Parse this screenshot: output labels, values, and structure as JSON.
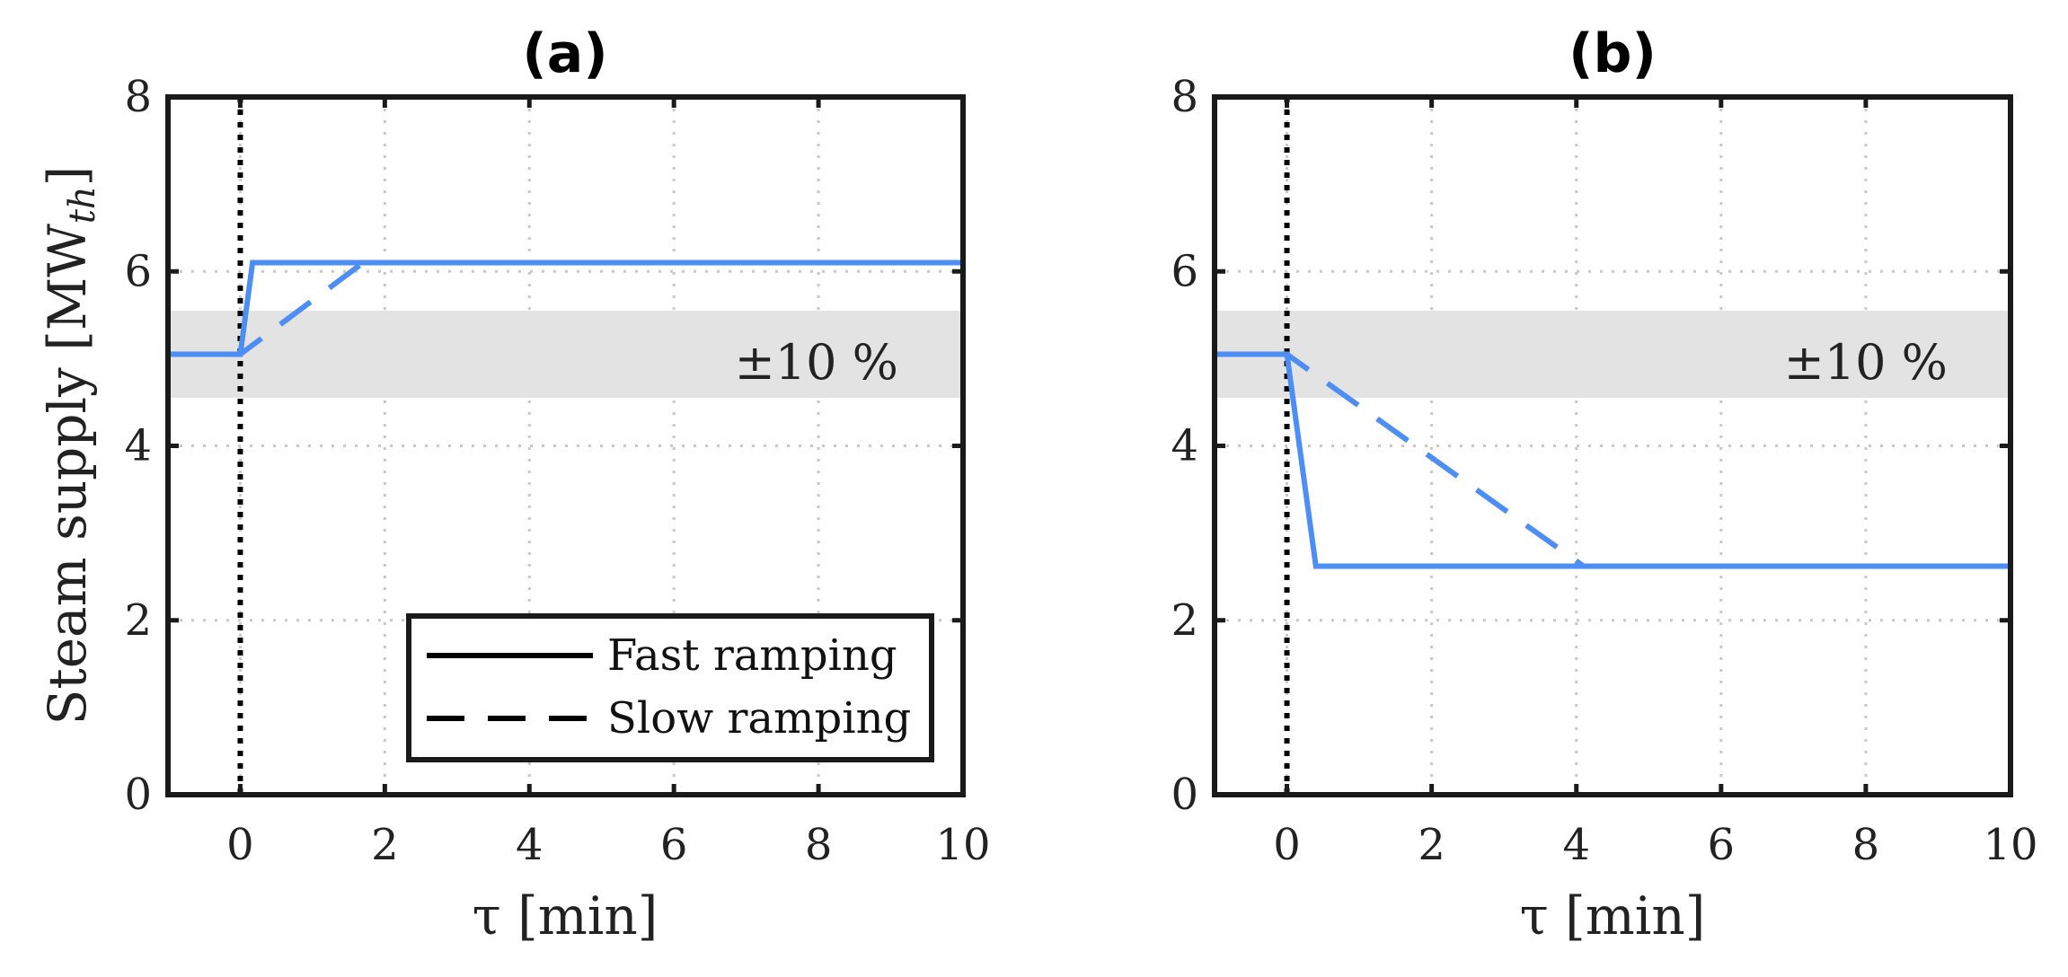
{
  "chart_data": [
    {
      "panel": "a",
      "type": "line",
      "title": "(a)",
      "xlabel": "τ [min]",
      "ylabel": "Steam supply [MW",
      "ylabel_sub": "th",
      "ylabel_close": "]",
      "xlim": [
        -1,
        10
      ],
      "ylim": [
        0,
        8
      ],
      "xticks": [
        0,
        2,
        4,
        6,
        8,
        10
      ],
      "xtick_labels": [
        "0",
        "2",
        "4",
        "6",
        "8",
        "10"
      ],
      "yticks": [
        0,
        2,
        4,
        6,
        8
      ],
      "ytick_labels": [
        "0",
        "2",
        "4",
        "6",
        "8"
      ],
      "grid": true,
      "vline_x": 0,
      "band": {
        "y0": 4.55,
        "y1": 5.55,
        "label": "±10 %"
      },
      "series": [
        {
          "name": "Fast ramping",
          "style": "solid",
          "color": "#4d8ef5",
          "x": [
            -1,
            0,
            0.17,
            10
          ],
          "y": [
            5.05,
            5.05,
            6.1,
            6.1
          ]
        },
        {
          "name": "Slow ramping",
          "style": "dashed",
          "color": "#4d8ef5",
          "x": [
            -1,
            0,
            1.7,
            10
          ],
          "y": [
            5.05,
            5.05,
            6.1,
            6.1
          ]
        }
      ],
      "legend": {
        "position": "bottom-right",
        "entries": [
          "Fast ramping",
          "Slow ramping"
        ]
      }
    },
    {
      "panel": "b",
      "type": "line",
      "title": "(b)",
      "xlabel": "τ [min]",
      "xlim": [
        -1,
        10
      ],
      "ylim": [
        0,
        8
      ],
      "xticks": [
        0,
        2,
        4,
        6,
        8,
        10
      ],
      "xtick_labels": [
        "0",
        "2",
        "4",
        "6",
        "8",
        "10"
      ],
      "yticks": [
        0,
        2,
        4,
        6,
        8
      ],
      "ytick_labels": [
        "0",
        "2",
        "4",
        "6",
        "8"
      ],
      "grid": true,
      "vline_x": 0,
      "band": {
        "y0": 4.55,
        "y1": 5.55,
        "label": "±10 %"
      },
      "series": [
        {
          "name": "Fast ramping",
          "style": "solid",
          "color": "#4d8ef5",
          "x": [
            -1,
            0,
            0.4,
            10
          ],
          "y": [
            5.05,
            5.05,
            2.62,
            2.62
          ]
        },
        {
          "name": "Slow ramping",
          "style": "dashed",
          "color": "#4d8ef5",
          "x": [
            -1,
            0,
            4.1,
            10
          ],
          "y": [
            5.05,
            5.05,
            2.62,
            2.62
          ]
        }
      ]
    }
  ]
}
